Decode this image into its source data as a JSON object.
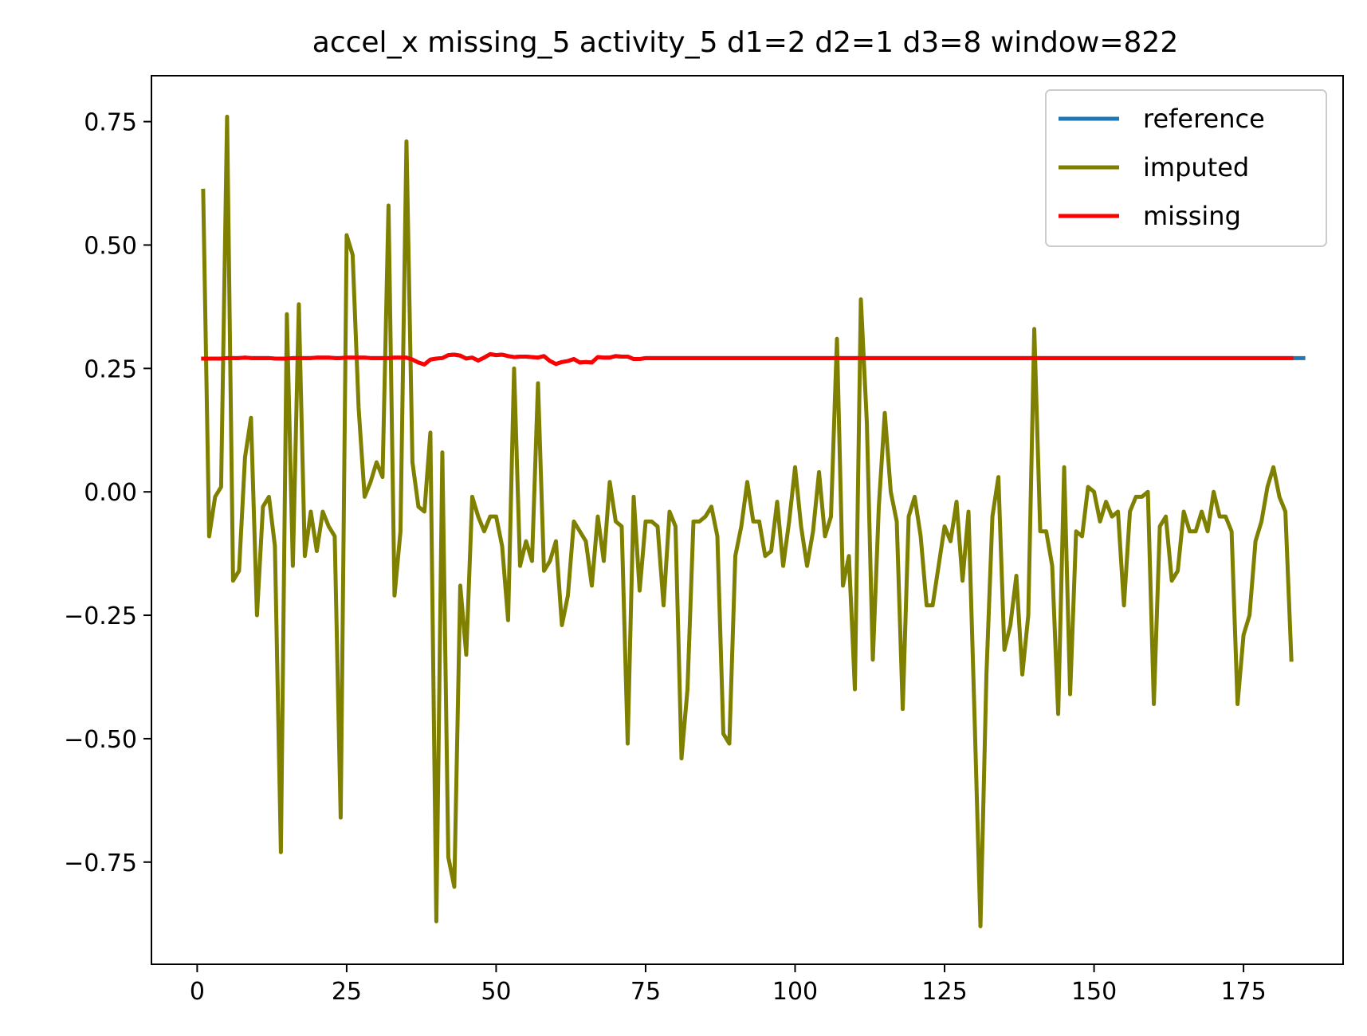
{
  "chart_data": {
    "type": "line",
    "title": "accel_x missing_5 activity_5 d1=2 d2=1 d3=8 window=822",
    "xlabel": "",
    "ylabel": "",
    "xlim": [
      -7.65,
      191.65
    ],
    "ylim": [
      -0.957,
      0.843
    ],
    "xticks": [
      0,
      25,
      50,
      75,
      100,
      125,
      150,
      175
    ],
    "yticks": [
      -0.75,
      -0.5,
      -0.25,
      0.0,
      0.25,
      0.5,
      0.75
    ],
    "xtick_labels": [
      "0",
      "25",
      "50",
      "75",
      "100",
      "125",
      "150",
      "175"
    ],
    "ytick_labels": [
      "−0.75",
      "−0.50",
      "−0.25",
      "0.00",
      "0.25",
      "0.50",
      "0.75"
    ],
    "grid": false,
    "legend": "top-right",
    "series": [
      {
        "name": "reference",
        "color": "#1f77b4",
        "x_start": 1,
        "values": [
          0.27,
          0.27,
          0.27,
          0.27,
          0.271,
          0.271,
          0.271,
          0.272,
          0.271,
          0.271,
          0.271,
          0.271,
          0.27,
          0.27,
          0.27,
          0.271,
          0.271,
          0.271,
          0.271,
          0.272,
          0.272,
          0.272,
          0.271,
          0.271,
          0.272,
          0.272,
          0.272,
          0.272,
          0.271,
          0.271,
          0.271,
          0.271,
          0.272,
          0.272,
          0.272,
          0.268,
          0.262,
          0.258,
          0.268,
          0.27,
          0.271,
          0.277,
          0.278,
          0.276,
          0.27,
          0.272,
          0.266,
          0.272,
          0.279,
          0.277,
          0.278,
          0.275,
          0.273,
          0.274,
          0.274,
          0.273,
          0.272,
          0.275,
          0.265,
          0.259,
          0.263,
          0.265,
          0.269,
          0.262,
          0.263,
          0.262,
          0.273,
          0.272,
          0.272,
          0.275,
          0.274,
          0.274,
          0.269,
          0.269,
          0.271,
          0.271,
          0.271,
          0.271,
          0.271,
          0.271,
          0.271,
          0.271,
          0.271,
          0.271,
          0.271,
          0.271,
          0.271,
          0.271,
          0.271,
          0.271,
          0.271,
          0.271,
          0.271,
          0.271,
          0.271,
          0.271,
          0.271,
          0.271,
          0.271,
          0.271,
          0.271,
          0.271,
          0.271,
          0.271,
          0.271,
          0.271,
          0.271,
          0.271,
          0.271,
          0.271,
          0.271,
          0.271,
          0.271,
          0.271,
          0.271,
          0.271,
          0.271,
          0.271,
          0.271,
          0.271,
          0.271,
          0.271,
          0.271,
          0.271,
          0.271,
          0.271,
          0.271,
          0.271,
          0.271,
          0.271,
          0.271,
          0.271,
          0.271,
          0.271,
          0.271,
          0.271,
          0.271,
          0.271,
          0.271,
          0.271,
          0.271,
          0.271,
          0.271,
          0.271,
          0.271,
          0.271,
          0.271,
          0.271,
          0.271,
          0.271,
          0.271,
          0.271,
          0.271,
          0.271,
          0.271,
          0.271,
          0.271,
          0.271,
          0.271,
          0.271,
          0.271,
          0.271,
          0.271,
          0.271,
          0.271,
          0.271,
          0.271,
          0.271,
          0.271,
          0.271,
          0.271,
          0.271,
          0.271,
          0.271,
          0.271,
          0.271,
          0.271,
          0.271,
          0.271,
          0.271,
          0.271,
          0.271,
          0.271,
          0.271,
          0.271
        ]
      },
      {
        "name": "imputed",
        "color": "#808000",
        "x_start": 1,
        "values": [
          0.61,
          -0.09,
          -0.01,
          0.01,
          0.76,
          -0.18,
          -0.16,
          0.07,
          0.15,
          -0.25,
          -0.03,
          -0.01,
          -0.11,
          -0.73,
          0.36,
          -0.15,
          0.38,
          -0.13,
          -0.04,
          -0.12,
          -0.04,
          -0.07,
          -0.09,
          -0.66,
          0.52,
          0.48,
          0.17,
          -0.01,
          0.02,
          0.06,
          0.03,
          0.58,
          -0.21,
          -0.08,
          0.71,
          0.06,
          -0.03,
          -0.04,
          0.12,
          -0.87,
          0.08,
          -0.74,
          -0.8,
          -0.19,
          -0.33,
          -0.01,
          -0.05,
          -0.08,
          -0.05,
          -0.05,
          -0.11,
          -0.26,
          0.25,
          -0.15,
          -0.1,
          -0.14,
          0.22,
          -0.16,
          -0.14,
          -0.1,
          -0.27,
          -0.21,
          -0.06,
          -0.08,
          -0.1,
          -0.19,
          -0.05,
          -0.14,
          0.02,
          -0.06,
          -0.07,
          -0.51,
          -0.01,
          -0.2,
          -0.06,
          -0.06,
          -0.07,
          -0.23,
          -0.04,
          -0.07,
          -0.54,
          -0.4,
          -0.06,
          -0.06,
          -0.05,
          -0.03,
          -0.09,
          -0.49,
          -0.51,
          -0.13,
          -0.07,
          0.02,
          -0.06,
          -0.06,
          -0.13,
          -0.12,
          -0.02,
          -0.15,
          -0.06,
          0.05,
          -0.07,
          -0.15,
          -0.08,
          0.04,
          -0.09,
          -0.05,
          0.31,
          -0.19,
          -0.13,
          -0.4,
          0.39,
          0.14,
          -0.34,
          -0.03,
          0.16,
          0.0,
          -0.06,
          -0.44,
          -0.05,
          -0.01,
          -0.09,
          -0.23,
          -0.23,
          -0.15,
          -0.07,
          -0.1,
          -0.02,
          -0.18,
          -0.04,
          -0.45,
          -0.88,
          -0.37,
          -0.05,
          0.03,
          -0.32,
          -0.27,
          -0.17,
          -0.37,
          -0.25,
          0.33,
          -0.08,
          -0.08,
          -0.15,
          -0.45,
          0.05,
          -0.41,
          -0.08,
          -0.09,
          0.01,
          0.0,
          -0.06,
          -0.02,
          -0.05,
          -0.04,
          -0.23,
          -0.04,
          -0.01,
          -0.01,
          0.0,
          -0.43,
          -0.07,
          -0.05,
          -0.18,
          -0.16,
          -0.04,
          -0.08,
          -0.08,
          -0.04,
          -0.08,
          0.0,
          -0.05,
          -0.05,
          -0.08,
          -0.43,
          -0.29,
          -0.25,
          -0.1,
          -0.06,
          0.01,
          0.05,
          -0.01,
          -0.04,
          -0.34
        ]
      },
      {
        "name": "missing",
        "color": "#ff0000",
        "x_start": 1,
        "values": [
          0.27,
          0.27,
          0.27,
          0.27,
          0.271,
          0.271,
          0.271,
          0.272,
          0.271,
          0.271,
          0.271,
          0.271,
          0.27,
          0.27,
          0.27,
          0.271,
          0.271,
          0.271,
          0.271,
          0.272,
          0.272,
          0.272,
          0.271,
          0.271,
          0.272,
          0.272,
          0.272,
          0.272,
          0.271,
          0.271,
          0.271,
          0.271,
          0.272,
          0.272,
          0.272,
          0.268,
          0.262,
          0.258,
          0.268,
          0.27,
          0.271,
          0.277,
          0.278,
          0.276,
          0.27,
          0.272,
          0.266,
          0.272,
          0.279,
          0.277,
          0.278,
          0.275,
          0.273,
          0.274,
          0.274,
          0.273,
          0.272,
          0.275,
          0.265,
          0.259,
          0.263,
          0.265,
          0.269,
          0.262,
          0.263,
          0.262,
          0.273,
          0.272,
          0.272,
          0.275,
          0.274,
          0.274,
          0.269,
          0.269,
          0.271,
          0.271,
          0.271,
          0.271,
          0.271,
          0.271,
          0.271,
          0.271,
          0.271,
          0.271,
          0.271,
          0.271,
          0.271,
          0.271,
          0.271,
          0.271,
          0.271,
          0.271,
          0.271,
          0.271,
          0.271,
          0.271,
          0.271,
          0.271,
          0.271,
          0.271,
          0.271,
          0.271,
          0.271,
          0.271,
          0.271,
          0.271,
          0.271,
          0.271,
          0.271,
          0.271,
          0.271,
          0.271,
          0.271,
          0.271,
          0.271,
          0.271,
          0.271,
          0.271,
          0.271,
          0.271,
          0.271,
          0.271,
          0.271,
          0.271,
          0.271,
          0.271,
          0.271,
          0.271,
          0.271,
          0.271,
          0.271,
          0.271,
          0.271,
          0.271,
          0.271,
          0.271,
          0.271,
          0.271,
          0.271,
          0.271,
          0.271,
          0.271,
          0.271,
          0.271,
          0.271,
          0.271,
          0.271,
          0.271,
          0.271,
          0.271,
          0.271,
          0.271,
          0.271,
          0.271,
          0.271,
          0.271,
          0.271,
          0.271,
          0.271,
          0.271,
          0.271,
          0.271,
          0.271,
          0.271,
          0.271,
          0.271,
          0.271,
          0.271,
          0.271,
          0.271,
          0.271,
          0.271,
          0.271,
          0.271,
          0.271,
          0.271,
          0.271,
          0.271,
          0.271,
          0.271,
          0.271,
          0.271,
          0.271
        ]
      }
    ]
  }
}
